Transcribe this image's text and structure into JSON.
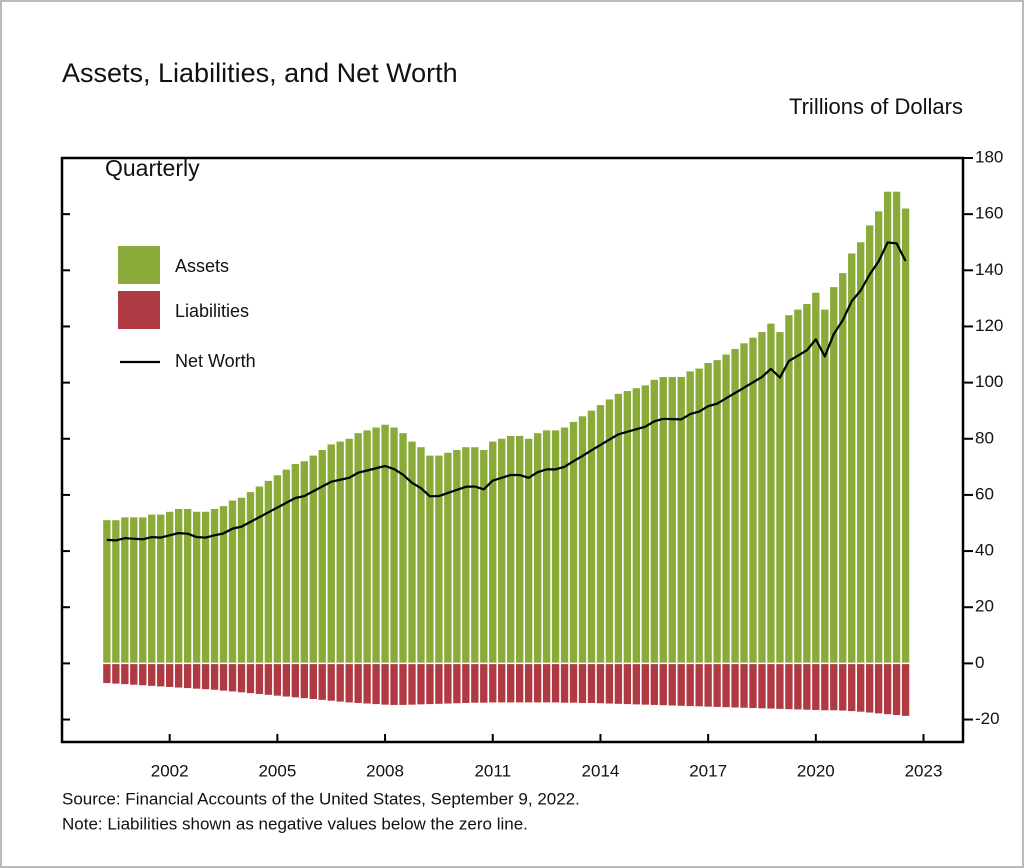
{
  "chart_data": {
    "type": "bar",
    "title": "Assets, Liabilities, and Net Worth",
    "y_label": "Trillions of Dollars",
    "subtitle": "Quarterly",
    "source": "Source: Financial Accounts of the United States, September 9, 2022.",
    "note": "Note: Liabilities shown as negative values below the zero line.",
    "x": [
      2000.25,
      2000.5,
      2000.75,
      2001,
      2001.25,
      2001.5,
      2001.75,
      2002,
      2002.25,
      2002.5,
      2002.75,
      2003,
      2003.25,
      2003.5,
      2003.75,
      2004,
      2004.25,
      2004.5,
      2004.75,
      2005,
      2005.25,
      2005.5,
      2005.75,
      2006,
      2006.25,
      2006.5,
      2006.75,
      2007,
      2007.25,
      2007.5,
      2007.75,
      2008,
      2008.25,
      2008.5,
      2008.75,
      2009,
      2009.25,
      2009.5,
      2009.75,
      2010,
      2010.25,
      2010.5,
      2010.75,
      2011,
      2011.25,
      2011.5,
      2011.75,
      2012,
      2012.25,
      2012.5,
      2012.75,
      2013,
      2013.25,
      2013.5,
      2013.75,
      2014,
      2014.25,
      2014.5,
      2014.75,
      2015,
      2015.25,
      2015.5,
      2015.75,
      2016,
      2016.25,
      2016.5,
      2016.75,
      2017,
      2017.25,
      2017.5,
      2017.75,
      2018,
      2018.25,
      2018.5,
      2018.75,
      2019,
      2019.25,
      2019.5,
      2019.75,
      2020,
      2020.25,
      2020.5,
      2020.75,
      2021,
      2021.25,
      2021.5,
      2021.75,
      2022,
      2022.25,
      2022.5
    ],
    "series": [
      {
        "name": "Assets",
        "type": "bar",
        "color": "#8aab3a",
        "values": [
          51,
          51,
          52,
          52,
          52,
          53,
          53,
          54,
          55,
          55,
          54,
          54,
          55,
          56,
          58,
          59,
          61,
          63,
          65,
          67,
          69,
          71,
          72,
          74,
          76,
          78,
          79,
          80,
          82,
          83,
          84,
          85,
          84,
          82,
          79,
          77,
          74,
          74,
          75,
          76,
          77,
          77,
          76,
          79,
          80,
          81,
          81,
          80,
          82,
          83,
          83,
          84,
          86,
          88,
          90,
          92,
          94,
          96,
          97,
          98,
          99,
          101,
          102,
          102,
          102,
          104,
          105,
          107,
          108,
          110,
          112,
          114,
          116,
          118,
          121,
          118,
          124,
          126,
          128,
          132,
          126,
          134,
          139,
          146,
          150,
          156,
          161,
          168,
          168,
          162
        ]
      },
      {
        "name": "Liabilities",
        "type": "bar",
        "color": "#b03a43",
        "values": [
          -7,
          -7.2,
          -7.4,
          -7.6,
          -7.8,
          -8,
          -8.2,
          -8.4,
          -8.6,
          -8.8,
          -9,
          -9.2,
          -9.4,
          -9.7,
          -10,
          -10.3,
          -10.6,
          -10.9,
          -11.2,
          -11.5,
          -11.8,
          -12.1,
          -12.4,
          -12.7,
          -13,
          -13.3,
          -13.6,
          -13.9,
          -14.1,
          -14.3,
          -14.5,
          -14.7,
          -14.8,
          -14.8,
          -14.7,
          -14.6,
          -14.5,
          -14.4,
          -14.3,
          -14.2,
          -14.1,
          -14,
          -14,
          -13.9,
          -13.9,
          -13.9,
          -13.9,
          -13.9,
          -13.9,
          -13.9,
          -13.9,
          -14,
          -14,
          -14.1,
          -14.1,
          -14.2,
          -14.3,
          -14.4,
          -14.5,
          -14.6,
          -14.7,
          -14.8,
          -14.9,
          -15,
          -15.1,
          -15.2,
          -15.3,
          -15.4,
          -15.5,
          -15.6,
          -15.7,
          -15.8,
          -15.9,
          -16,
          -16.1,
          -16.2,
          -16.3,
          -16.4,
          -16.5,
          -16.6,
          -16.7,
          -16.7,
          -16.8,
          -17,
          -17.2,
          -17.5,
          -17.8,
          -18.1,
          -18.4,
          -18.7
        ]
      },
      {
        "name": "Net Worth",
        "type": "line",
        "color": "#000000",
        "values": [
          44,
          43.8,
          44.6,
          44.4,
          44.2,
          45,
          44.8,
          45.6,
          46.4,
          46.2,
          45,
          44.8,
          45.6,
          46.3,
          48,
          48.7,
          50.4,
          52.1,
          53.8,
          55.5,
          57.2,
          58.9,
          59.6,
          61.3,
          63,
          64.7,
          65.4,
          66.1,
          67.9,
          68.7,
          69.5,
          70.3,
          69.2,
          67.2,
          64.3,
          62.4,
          59.5,
          59.6,
          60.7,
          61.8,
          62.9,
          63,
          62,
          65.1,
          66.1,
          67.1,
          67.1,
          66.1,
          68.1,
          69.1,
          69.1,
          70,
          72,
          73.9,
          75.9,
          77.8,
          79.7,
          81.6,
          82.5,
          83.4,
          84.3,
          86.2,
          87.1,
          87,
          86.9,
          88.8,
          89.7,
          91.6,
          92.5,
          94.4,
          96.3,
          98.2,
          100.1,
          102,
          104.9,
          101.8,
          107.7,
          109.6,
          111.5,
          115.4,
          109.3,
          117.3,
          122.2,
          129,
          132.8,
          138.5,
          143.2,
          149.9,
          149.6,
          143.3
        ]
      }
    ],
    "xlim": [
      1999.0,
      2024.1
    ],
    "xticks": [
      2002,
      2005,
      2008,
      2011,
      2014,
      2017,
      2020,
      2023
    ],
    "ylim": [
      -28,
      180
    ],
    "yticks": [
      -20,
      0,
      20,
      40,
      60,
      80,
      100,
      120,
      140,
      160,
      180
    ],
    "grid": false,
    "legend": "upper left"
  }
}
